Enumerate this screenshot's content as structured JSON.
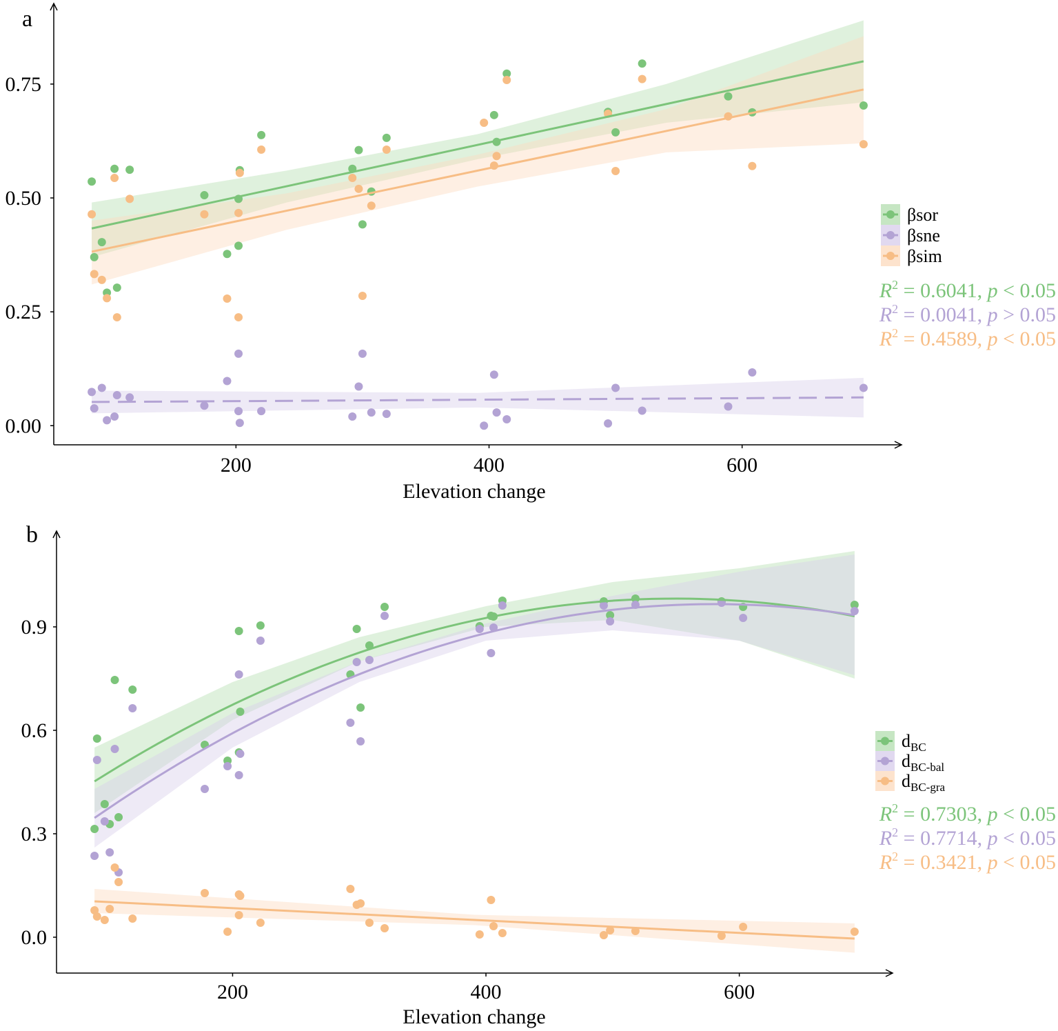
{
  "chart_data": [
    {
      "panel_label": "a",
      "type": "scatter",
      "xlabel": "Elevation change",
      "ylabel": "",
      "xlim": [
        56,
        726
      ],
      "ylim": [
        -0.042,
        0.927
      ],
      "xticks": [
        200,
        400,
        600
      ],
      "xtick_labels": [
        "200",
        "400",
        "600"
      ],
      "yticks": [
        0,
        0.25,
        0.5,
        0.75
      ],
      "ytick_labels": [
        "0.00",
        "0.25",
        "0.50",
        "0.75"
      ],
      "grid": false,
      "legend_position": "right",
      "x": [
        86,
        88,
        94,
        98,
        104,
        106,
        116,
        175,
        193,
        202,
        203,
        202,
        220,
        292,
        297,
        300,
        307,
        319,
        396,
        404,
        406,
        414,
        494,
        500,
        521,
        589,
        608,
        696
      ],
      "series": [
        {
          "name": "βsor",
          "name_main": "βsor",
          "name_sub": "",
          "color": "#7cc47a",
          "band_color": "#b8e0b4",
          "y": [
            0.536,
            0.37,
            0.403,
            0.292,
            0.564,
            0.303,
            0.562,
            0.506,
            0.377,
            0.498,
            0.561,
            0.395,
            0.638,
            0.564,
            0.605,
            0.442,
            0.514,
            0.632,
            null,
            0.682,
            0.623,
            0.773,
            0.689,
            0.644,
            0.795,
            0.723,
            0.688,
            0.703
          ],
          "fit": {
            "type": "linear",
            "dashed": false,
            "x": [
              86,
              696
            ],
            "y": [
              0.433,
              0.8
            ]
          },
          "ci": [
            [
              86,
              0.37,
              0.49
            ],
            [
              240,
              0.49,
              0.56
            ],
            [
              391,
              0.585,
              0.64
            ],
            [
              540,
              0.665,
              0.75
            ],
            [
              696,
              0.71,
              0.89
            ]
          ]
        },
        {
          "name": "βsne",
          "name_main": "βsne",
          "name_sub": "",
          "color": "#b3a3d4",
          "band_color": "#d9d0ec",
          "y": [
            0.074,
            0.038,
            0.083,
            0.012,
            0.02,
            0.067,
            0.062,
            0.044,
            0.098,
            0.032,
            0.006,
            0.158,
            0.032,
            0.02,
            0.086,
            0.158,
            0.029,
            0.026,
            0.0,
            0.112,
            0.029,
            0.014,
            0.005,
            0.083,
            0.033,
            0.042,
            0.117,
            0.083
          ],
          "fit": {
            "type": "linear",
            "dashed": true,
            "x": [
              86,
              696
            ],
            "y": [
              0.052,
              0.062
            ]
          },
          "ci": [
            [
              86,
              0.027,
              0.077
            ],
            [
              391,
              0.04,
              0.072
            ],
            [
              696,
              0.018,
              0.105
            ]
          ]
        },
        {
          "name": "βsim",
          "name_main": "βsim",
          "name_sub": "",
          "color": "#f7bd85",
          "band_color": "#fcdcc0",
          "y": [
            0.464,
            0.333,
            0.32,
            0.28,
            0.544,
            0.238,
            0.498,
            0.464,
            0.279,
            0.467,
            0.555,
            0.238,
            0.606,
            0.544,
            0.52,
            0.285,
            0.483,
            0.606,
            0.665,
            0.571,
            0.592,
            0.759,
            0.685,
            0.559,
            0.761,
            0.679,
            0.57,
            0.618
          ],
          "fit": {
            "type": "linear",
            "dashed": false,
            "x": [
              86,
              696
            ],
            "y": [
              0.382,
              0.738
            ]
          },
          "ci": [
            [
              86,
              0.31,
              0.45
            ],
            [
              240,
              0.43,
              0.51
            ],
            [
              391,
              0.525,
              0.595
            ],
            [
              540,
              0.6,
              0.695
            ],
            [
              696,
              0.62,
              0.855
            ]
          ]
        }
      ],
      "annotations": [
        {
          "r_label": "R",
          "sup": "2",
          "eq": " = 0.6041, ",
          "p_label": "p",
          "cmp": " < 0.05",
          "color": "#7cc47a"
        },
        {
          "r_label": "R",
          "sup": "2",
          "eq": " = 0.0041, ",
          "p_label": "p",
          "cmp": " > 0.05",
          "color": "#b3a3d4"
        },
        {
          "r_label": "R",
          "sup": "2",
          "eq": " = 0.4589, ",
          "p_label": "p",
          "cmp": " < 0.05",
          "color": "#f7bd85"
        }
      ]
    },
    {
      "panel_label": "b",
      "type": "scatter",
      "xlabel": "Elevation change",
      "ylabel": "",
      "xlim": [
        61,
        721
      ],
      "ylim": [
        -0.104,
        1.178
      ],
      "xticks": [
        200,
        400,
        600
      ],
      "xtick_labels": [
        "200",
        "400",
        "600"
      ],
      "yticks": [
        0,
        0.3,
        0.6,
        0.9
      ],
      "ytick_labels": [
        "0.0",
        "0.3",
        "0.6",
        "0.9"
      ],
      "grid": false,
      "legend_position": "right",
      "x": [
        91,
        93,
        99,
        103,
        107,
        110,
        121,
        178,
        196,
        205,
        205,
        206,
        222,
        293,
        298,
        301,
        308,
        320,
        395,
        404,
        406,
        413,
        493,
        498,
        518,
        586,
        603,
        691
      ],
      "series": [
        {
          "name": "dBC",
          "name_main": "d",
          "name_sub": "BC",
          "color": "#7cc47a",
          "band_color": "#b8e0b4",
          "y": [
            0.314,
            0.576,
            0.386,
            0.328,
            0.746,
            0.348,
            0.718,
            0.558,
            0.512,
            0.888,
            0.536,
            0.654,
            0.904,
            0.762,
            0.894,
            0.666,
            0.846,
            0.958,
            0.902,
            0.932,
            0.93,
            0.976,
            0.974,
            0.934,
            0.982,
            0.974,
            0.958,
            0.964
          ],
          "fit": {
            "type": "quadratic",
            "dashed": false,
            "vertex_x": 549,
            "vertex_y": 0.982,
            "a": -2.527e-06,
            "x": [
              91,
              691
            ]
          },
          "ci": [
            [
              91,
              0.36,
              0.55
            ],
            [
              200,
              0.63,
              0.74
            ],
            [
              300,
              0.8,
              0.87
            ],
            [
              400,
              0.9,
              0.96
            ],
            [
              500,
              0.92,
              1.03
            ],
            [
              600,
              0.86,
              1.07
            ],
            [
              691,
              0.75,
              1.12
            ]
          ]
        },
        {
          "name": "dBC-bal",
          "name_main": "d",
          "name_sub": "BC-bal",
          "color": "#b3a3d4",
          "band_color": "#d9d0ec",
          "y": [
            0.236,
            0.514,
            0.336,
            0.246,
            0.546,
            0.188,
            0.664,
            0.43,
            0.496,
            0.762,
            0.47,
            0.532,
            0.86,
            0.622,
            0.798,
            0.568,
            0.804,
            0.932,
            0.894,
            0.824,
            0.898,
            0.962,
            0.962,
            0.916,
            0.964,
            0.97,
            0.926,
            0.946
          ],
          "fit": {
            "type": "quadratic",
            "dashed": false,
            "vertex_x": 580,
            "vertex_y": 0.966,
            "a": -2.593e-06,
            "x": [
              91,
              691
            ]
          },
          "ci": [
            [
              91,
              0.26,
              0.43
            ],
            [
              200,
              0.55,
              0.65
            ],
            [
              300,
              0.74,
              0.8
            ],
            [
              400,
              0.86,
              0.91
            ],
            [
              500,
              0.89,
              0.99
            ],
            [
              600,
              0.86,
              1.06
            ],
            [
              691,
              0.76,
              1.11
            ]
          ]
        },
        {
          "name": "dBC-gra",
          "name_main": "d",
          "name_sub": "BC-gra",
          "color": "#f7bd85",
          "band_color": "#fcdcc0",
          "y": [
            0.078,
            0.06,
            0.05,
            0.082,
            0.202,
            0.16,
            0.054,
            0.128,
            0.016,
            0.124,
            0.064,
            0.12,
            0.042,
            0.14,
            0.094,
            0.098,
            0.042,
            0.026,
            0.008,
            0.108,
            0.032,
            0.012,
            0.006,
            0.02,
            0.018,
            0.004,
            0.03,
            0.016
          ],
          "fit": {
            "type": "linear",
            "dashed": false,
            "x": [
              91,
              691
            ],
            "y": [
              0.104,
              -0.004
            ]
          },
          "ci": [
            [
              91,
              0.07,
              0.14
            ],
            [
              391,
              0.035,
              0.065
            ],
            [
              691,
              -0.045,
              0.04
            ]
          ]
        }
      ],
      "annotations": [
        {
          "r_label": "R",
          "sup": "2",
          "eq": " = 0.7303, ",
          "p_label": "p",
          "cmp": " < 0.05",
          "color": "#7cc47a"
        },
        {
          "r_label": "R",
          "sup": "2",
          "eq": " = 0.7714, ",
          "p_label": "p",
          "cmp": " < 0.05",
          "color": "#b3a3d4"
        },
        {
          "r_label": "R",
          "sup": "2",
          "eq": " = 0.3421, ",
          "p_label": "p",
          "cmp": " < 0.05",
          "color": "#f7bd85"
        }
      ]
    }
  ]
}
